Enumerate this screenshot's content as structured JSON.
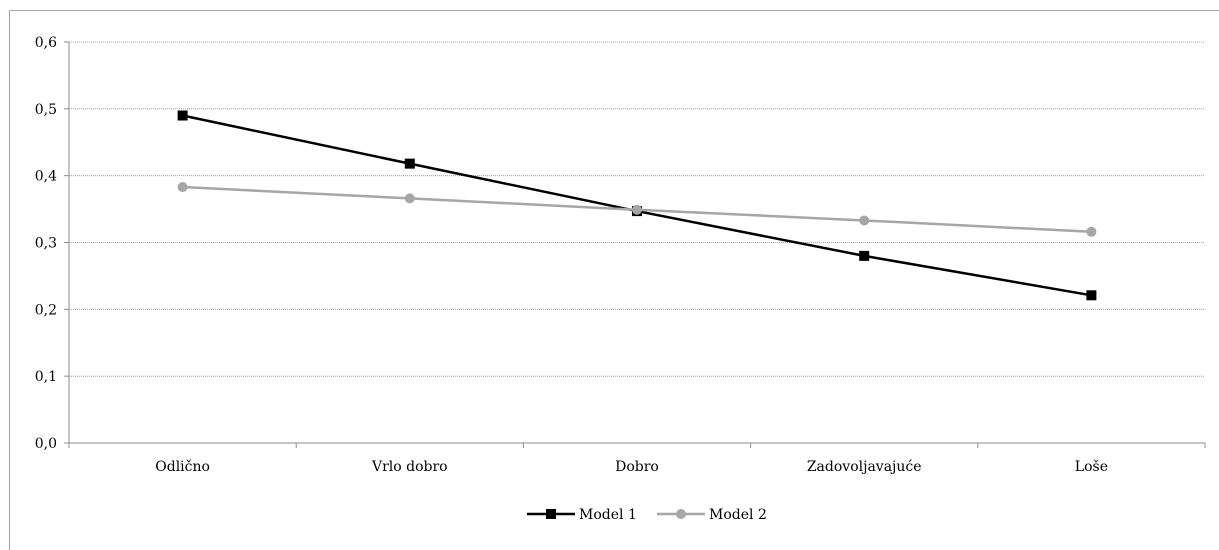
{
  "chart_data": {
    "type": "line",
    "title": "",
    "xlabel": "",
    "ylabel": "",
    "categories": [
      "Odlično",
      "Vrlo dobro",
      "Dobro",
      "Zadovoljavajuće",
      "Loše"
    ],
    "ylim": [
      0,
      0.6
    ],
    "yticks": [
      "0,0",
      "0,1",
      "0,2",
      "0,3",
      "0,4",
      "0,5",
      "0,6"
    ],
    "grid": true,
    "legend_position": "bottom",
    "series": [
      {
        "name": "Model 1",
        "values": [
          0.49,
          0.418,
          0.347,
          0.28,
          0.221
        ],
        "color": "#000000",
        "marker": "square"
      },
      {
        "name": "Model 2",
        "values": [
          0.383,
          0.366,
          0.349,
          0.333,
          0.316
        ],
        "color": "#a6a6a6",
        "marker": "circle"
      }
    ]
  }
}
